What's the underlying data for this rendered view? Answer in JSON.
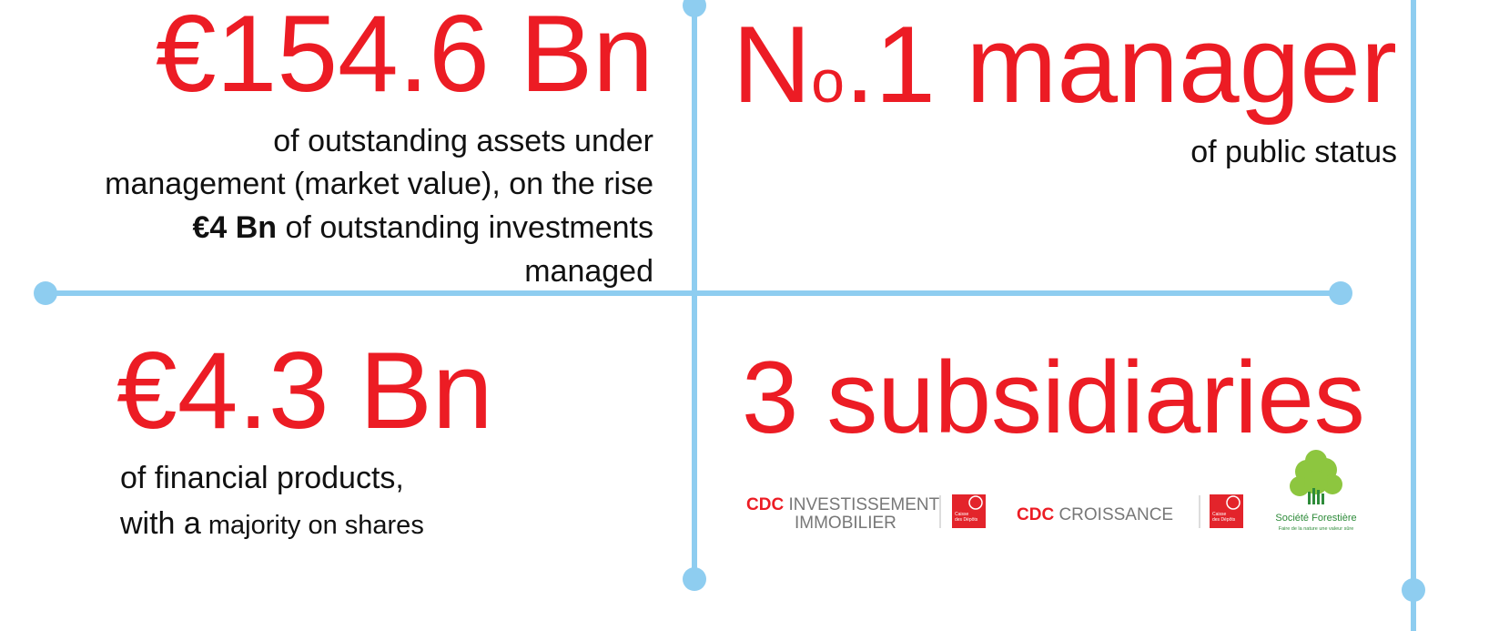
{
  "top_left": {
    "headline": "€154.6 Bn",
    "lines": [
      "of outstanding assets under",
      "management (market value), on the rise"
    ],
    "bold": "€4 Bn",
    "after_bold": " of outstanding investments",
    "last_line": "managed"
  },
  "top_right": {
    "headline_n": "N",
    "headline_o": "o",
    "headline_rest": ".1 manager",
    "caption": "of public status"
  },
  "bottom_left": {
    "headline": "€4.3 Bn",
    "line1": "of financial products,",
    "line2_large": "with a",
    "line2_small": " majority on shares"
  },
  "bottom_right": {
    "headline": "3 subsidiaries",
    "logos": [
      {
        "brand": "CDC",
        "name_1": " INVESTISSEMENT",
        "name_2": "IMMOBILIER",
        "badge_1": "Caisse",
        "badge_2": "des Dépôts"
      },
      {
        "brand": "CDC",
        "name_1": " CROISSANCE",
        "badge_1": "Caisse",
        "badge_2": "des Dépôts"
      },
      {
        "name": "Société Forestière",
        "tagline": "Faire de la nature une valeur sûre"
      }
    ]
  }
}
